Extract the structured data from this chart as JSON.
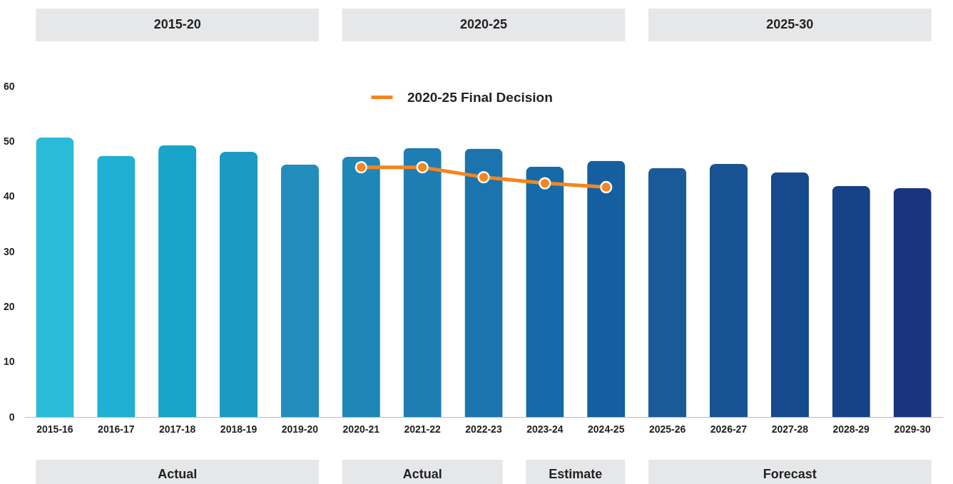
{
  "chart_data": {
    "type": "bar",
    "categories": [
      "2015-16",
      "2016-17",
      "2017-18",
      "2018-19",
      "2019-20",
      "2020-21",
      "2021-22",
      "2022-23",
      "2023-24",
      "2024-25",
      "2025-26",
      "2026-27",
      "2027-28",
      "2028-29",
      "2029-30"
    ],
    "series": [
      {
        "colors": [
          "#2abbd9",
          "#1fb0d3",
          "#17a3ca",
          "#1d9ac4",
          "#228dbd",
          "#1f87b8",
          "#1e7db2",
          "#1b74ad",
          "#166aa7",
          "#155fa0",
          "#1b5a99",
          "#185393",
          "#16498d",
          "#174287",
          "#1a3580"
        ],
        "values": [
          50.7,
          47.4,
          49.3,
          48.1,
          45.8,
          47.2,
          48.8,
          48.7,
          45.4,
          46.5,
          45.2,
          45.9,
          44.4,
          41.9,
          41.5
        ]
      },
      {
        "type": "line",
        "name": "2020-25 Final Decision",
        "color": "#f5851f",
        "marker": "circle",
        "values": [
          null,
          null,
          null,
          null,
          null,
          45.3,
          45.3,
          43.5,
          42.4,
          41.7,
          null,
          null,
          null,
          null,
          null
        ]
      }
    ],
    "ylim": [
      0,
      60
    ],
    "yticks": [
      0,
      10,
      20,
      30,
      40,
      50,
      60
    ],
    "grid": false,
    "legend": "top",
    "annotations": [
      "2015-20",
      "2020-25",
      "2025-30",
      "Actual",
      "Actual",
      "Estimate",
      "Forecast"
    ]
  }
}
